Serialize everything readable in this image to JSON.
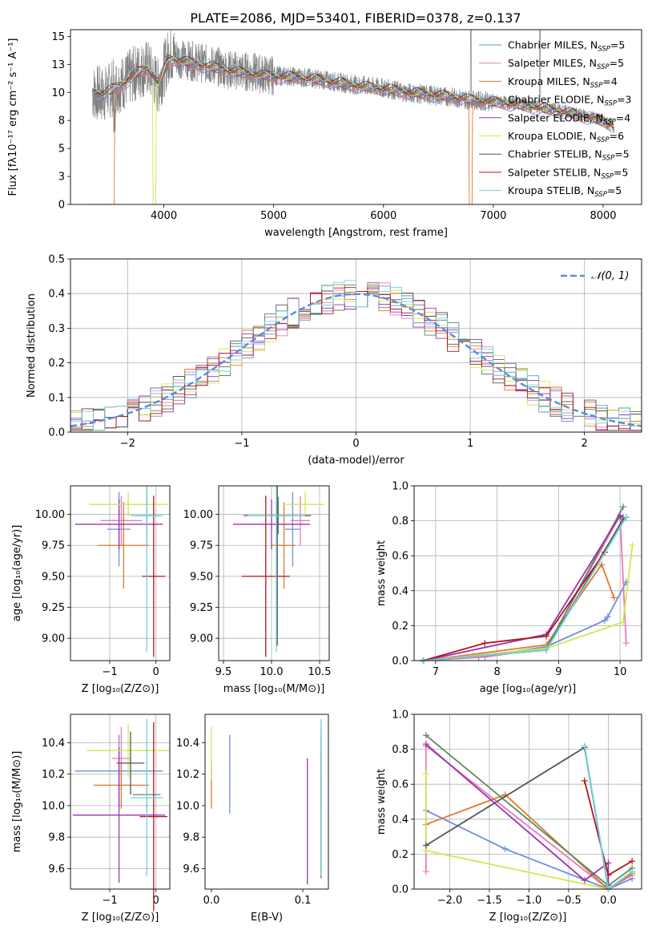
{
  "figure": {
    "title": "PLATE=2086, MJD=53401, FIBERID=0378, z=0.137"
  },
  "legend_models": [
    {
      "name": "Chabrier MILES",
      "nssp": "5",
      "color": "#6a8fdd"
    },
    {
      "name": "Salpeter MILES",
      "nssp": "5",
      "color": "#e57bb7"
    },
    {
      "name": "Kroupa MILES",
      "nssp": "4",
      "color": "#e0782c"
    },
    {
      "name": "Chabrier ELODIE",
      "nssp": "3",
      "color": "#5b8a5e"
    },
    {
      "name": "Salpeter ELODIE",
      "nssp": "4",
      "color": "#9c32b0"
    },
    {
      "name": "Kroupa ELODIE",
      "nssp": "6",
      "color": "#cdea4c"
    },
    {
      "name": "Chabrier STELIB",
      "nssp": "5",
      "color": "#555555"
    },
    {
      "name": "Salpeter STELIB",
      "nssp": "5",
      "color": "#b0141f"
    },
    {
      "name": "Kroupa STELIB",
      "nssp": "5",
      "color": "#6fd3dc"
    }
  ],
  "chart_data": [
    {
      "id": "spectrum",
      "type": "line",
      "xlabel": "wavelength [Angstrom, rest frame]",
      "ylabel": "Flux [fλ10⁻¹⁷ erg cm⁻² s⁻¹ A⁻¹]",
      "xlim": [
        3150,
        8350
      ],
      "ylim": [
        0,
        15.6
      ],
      "xticks": [
        4000,
        5000,
        6000,
        7000,
        8000
      ],
      "yticks": [
        0.0,
        2.5,
        5.0,
        7.5,
        10.0,
        12.5,
        15.0
      ],
      "data_color": "#808080",
      "data_x": [
        3350,
        3450,
        3550,
        3650,
        3750,
        3850,
        3950,
        4050,
        4150,
        4250,
        4400,
        4600,
        4800,
        5000,
        5200,
        5400,
        5600,
        5800,
        6000,
        6200,
        6400,
        6600,
        6800,
        7000,
        7200,
        7400,
        7600,
        7800,
        8000,
        8100
      ],
      "data_y": [
        10.0,
        9.8,
        10.5,
        11.0,
        11.8,
        12.2,
        10.5,
        13.5,
        13.0,
        12.8,
        12.5,
        12.0,
        11.8,
        11.5,
        11.4,
        11.2,
        10.9,
        10.6,
        10.4,
        10.0,
        9.8,
        9.6,
        9.3,
        9.2,
        9.0,
        8.7,
        8.4,
        8.0,
        7.5,
        7.0
      ],
      "model_y": [
        10.0,
        9.9,
        10.3,
        10.9,
        11.7,
        12.1,
        10.8,
        13.0,
        12.8,
        12.6,
        12.3,
        11.9,
        11.6,
        11.4,
        11.3,
        11.1,
        10.8,
        10.5,
        10.3,
        10.0,
        9.8,
        9.6,
        9.3,
        9.1,
        8.9,
        8.6,
        8.3,
        7.9,
        7.4,
        7.0
      ]
    },
    {
      "id": "residuals",
      "type": "line",
      "xlabel": "(data-model)/error",
      "ylabel": "Normed distribution",
      "xlim": [
        -2.5,
        2.5
      ],
      "ylim": [
        0,
        0.5
      ],
      "xticks": [
        -2,
        -1,
        0,
        1,
        2
      ],
      "yticks": [
        0.0,
        0.1,
        0.2,
        0.3,
        0.4,
        0.5
      ],
      "reference_label": "𝒩(0, 1)",
      "reference_color": "#5b8bd6"
    },
    {
      "id": "age_vs_Z",
      "type": "scatter",
      "xlabel": "Z [log₁₀(Z/Z⊙)]",
      "ylabel": "age  [log₁₀(age/yr)]",
      "xlim": [
        -1.85,
        0.3
      ],
      "ylim": [
        8.82,
        10.23
      ],
      "xticks": [
        -1,
        0
      ],
      "yticks": [
        9.0,
        9.25,
        9.5,
        9.75,
        10.0
      ],
      "points": [
        {
          "x": -0.8,
          "y": 9.88,
          "xerr": 0.25,
          "yerr": 0.3
        },
        {
          "x": -0.75,
          "y": 9.95,
          "xerr": 0.45,
          "yerr": 0.2
        },
        {
          "x": -0.7,
          "y": 9.75,
          "xerr": 0.55,
          "yerr": 0.35
        },
        {
          "x": -0.2,
          "y": 9.99,
          "xerr": 0.3,
          "yerr": 0.15
        },
        {
          "x": -0.8,
          "y": 9.92,
          "xerr": 0.95,
          "yerr": 0.2
        },
        {
          "x": -0.6,
          "y": 10.08,
          "xerr": 0.85,
          "yerr": 0.1
        },
        {
          "x": -0.2,
          "y": 9.99,
          "xerr": 0.25,
          "yerr": 0.25
        },
        {
          "x": -0.05,
          "y": 9.5,
          "xerr": 0.25,
          "yerr": 0.65
        },
        {
          "x": -0.2,
          "y": 9.99,
          "xerr": 0.35,
          "yerr": 1.1
        }
      ]
    },
    {
      "id": "age_vs_mass",
      "type": "scatter",
      "xlabel": "mass [log₁₀(M/M⊙)]",
      "ylabel": "",
      "xlim": [
        9.45,
        10.6
      ],
      "ylim": [
        8.82,
        10.23
      ],
      "xticks": [
        9.5,
        10.0,
        10.5
      ],
      "yticks": [
        9.0,
        9.25,
        9.5,
        9.75,
        10.0
      ],
      "points": [
        {
          "x": 10.22,
          "y": 9.88,
          "xerr": 0.08,
          "yerr": 0.3
        },
        {
          "x": 10.3,
          "y": 9.95,
          "xerr": 0.1,
          "yerr": 0.2
        },
        {
          "x": 10.13,
          "y": 9.75,
          "xerr": 0.12,
          "yerr": 0.35
        },
        {
          "x": 10.07,
          "y": 9.99,
          "xerr": 0.1,
          "yerr": 0.15
        },
        {
          "x": 10.0,
          "y": 9.92,
          "xerr": 0.4,
          "yerr": 0.2
        },
        {
          "x": 10.35,
          "y": 10.08,
          "xerr": 0.2,
          "yerr": 0.1
        },
        {
          "x": 10.06,
          "y": 9.99,
          "xerr": 0.35,
          "yerr": 1.05
        },
        {
          "x": 9.94,
          "y": 9.5,
          "xerr": 0.25,
          "yerr": 0.65
        },
        {
          "x": 10.05,
          "y": 9.99,
          "xerr": 0.3,
          "yerr": 1.1
        }
      ]
    },
    {
      "id": "weight_vs_age",
      "type": "line",
      "xlabel": "age  [log₁₀(age/yr)]",
      "ylabel": "mass weight",
      "xlim": [
        6.65,
        10.35
      ],
      "ylim": [
        0,
        1.0
      ],
      "xticks": [
        7,
        8,
        9,
        10
      ],
      "yticks": [
        0.0,
        0.2,
        0.4,
        0.6,
        0.8,
        1.0
      ],
      "series": [
        {
          "x": [
            6.8,
            7.7,
            8.8,
            9.75,
            9.8,
            10.1
          ],
          "y": [
            0.0,
            0.02,
            0.08,
            0.23,
            0.25,
            0.45
          ]
        },
        {
          "x": [
            6.8,
            7.8,
            8.8,
            10.0,
            10.1
          ],
          "y": [
            0.0,
            0.02,
            0.07,
            0.83,
            0.1
          ]
        },
        {
          "x": [
            6.8,
            8.8,
            9.7,
            9.9
          ],
          "y": [
            0.0,
            0.09,
            0.55,
            0.36
          ]
        },
        {
          "x": [
            6.8,
            8.8,
            10.05
          ],
          "y": [
            0.0,
            0.07,
            0.88
          ]
        },
        {
          "x": [
            6.8,
            8.8,
            10.0,
            10.05
          ],
          "y": [
            0.0,
            0.15,
            0.83,
            0.82
          ]
        },
        {
          "x": [
            6.8,
            8.8,
            10.05,
            10.2
          ],
          "y": [
            0.0,
            0.07,
            0.22,
            0.66
          ]
        },
        {
          "x": [
            6.8,
            8.8,
            10.05,
            10.1
          ],
          "y": [
            0.0,
            0.06,
            0.81,
            0.82
          ]
        },
        {
          "x": [
            6.8,
            7.8,
            8.8,
            9.75
          ],
          "y": [
            0.0,
            0.1,
            0.14,
            0.62
          ]
        },
        {
          "x": [
            6.8,
            8.8,
            10.1
          ],
          "y": [
            0.0,
            0.06,
            0.82
          ]
        }
      ]
    },
    {
      "id": "mass_vs_Z",
      "type": "scatter",
      "xlabel": "Z [log₁₀(Z/Z⊙)]",
      "ylabel": "mass [log₁₀(M/M⊙)]",
      "xlim": [
        -1.85,
        0.3
      ],
      "ylim": [
        9.47,
        10.58
      ],
      "xticks": [
        -1,
        0
      ],
      "yticks": [
        9.6,
        9.8,
        10.0,
        10.2,
        10.4
      ],
      "points": [
        {
          "x": -0.8,
          "y": 10.22,
          "xerr": 0.95,
          "yerr": 0.23
        },
        {
          "x": -0.75,
          "y": 10.3,
          "xerr": 0.2,
          "yerr": 0.2
        },
        {
          "x": -0.75,
          "y": 10.13,
          "xerr": 0.6,
          "yerr": 0.15
        },
        {
          "x": -0.2,
          "y": 10.07,
          "xerr": 0.3,
          "yerr": 0.1
        },
        {
          "x": -0.8,
          "y": 9.94,
          "xerr": 1.0,
          "yerr": 0.43
        },
        {
          "x": -0.6,
          "y": 10.35,
          "xerr": 0.9,
          "yerr": 0.17
        },
        {
          "x": -0.55,
          "y": 10.27,
          "xerr": 0.3,
          "yerr": 0.2
        },
        {
          "x": -0.05,
          "y": 9.93,
          "xerr": 0.3,
          "yerr": 0.6
        },
        {
          "x": -0.2,
          "y": 10.05,
          "xerr": 0.35,
          "yerr": 0.5
        }
      ]
    },
    {
      "id": "mass_vs_ebv",
      "type": "scatter",
      "xlabel": "E(B-V)",
      "ylabel": "",
      "xlim": [
        -0.007,
        0.128
      ],
      "ylim": [
        9.47,
        10.58
      ],
      "xticks": [
        0.0,
        0.1
      ],
      "yticks": [
        9.6,
        9.8,
        10.0,
        10.2,
        10.4
      ],
      "points": [
        {
          "x": 0.02,
          "y": 10.2,
          "yerr": 0.25
        },
        {
          "x": 0.12,
          "y": 10.3,
          "yerr": 0.2
        },
        {
          "x": 0.0,
          "y": 10.13,
          "yerr": 0.15
        },
        {
          "x": 0.12,
          "y": 10.07,
          "yerr": 0.1
        },
        {
          "x": 0.105,
          "y": 9.9,
          "yerr": 0.4
        },
        {
          "x": 0.0,
          "y": 10.33,
          "yerr": 0.17
        },
        {
          "x": 0.12,
          "y": 10.0,
          "yerr": 0.45
        },
        {
          "x": 0.12,
          "y": 9.94,
          "yerr": 0.4
        },
        {
          "x": 0.12,
          "y": 10.05,
          "yerr": 0.5
        }
      ]
    },
    {
      "id": "weight_vs_Z",
      "type": "line",
      "xlabel": "Z [log₁₀(Z/Z⊙)]",
      "ylabel": "mass weight",
      "xlim": [
        -2.45,
        0.42
      ],
      "ylim": [
        0,
        1.0
      ],
      "xticks": [
        -2.0,
        -1.5,
        -1.0,
        -0.5,
        0.0
      ],
      "yticks": [
        0.0,
        0.2,
        0.4,
        0.6,
        0.8,
        1.0
      ],
      "series": [
        {
          "x": [
            -2.3,
            -1.3,
            0.0,
            0.3
          ],
          "y": [
            0.45,
            0.23,
            0.0,
            0.06
          ]
        },
        {
          "x": [
            -2.3,
            -2.3,
            0.0,
            0.3
          ],
          "y": [
            0.1,
            0.82,
            0.0,
            0.08
          ]
        },
        {
          "x": [
            -2.3,
            -1.3,
            0.0,
            0.3
          ],
          "y": [
            0.37,
            0.54,
            0.0,
            0.09
          ]
        },
        {
          "x": [
            -2.3,
            0.0,
            0.3
          ],
          "y": [
            0.88,
            0.02,
            0.12
          ]
        },
        {
          "x": [
            -2.3,
            -0.3,
            0.0,
            0.0
          ],
          "y": [
            0.83,
            0.05,
            0.15,
            0.0
          ]
        },
        {
          "x": [
            -2.3,
            -2.3,
            0.0,
            0.3
          ],
          "y": [
            0.66,
            0.22,
            0.0,
            0.1
          ]
        },
        {
          "x": [
            -2.3,
            -0.3,
            0.0
          ],
          "y": [
            0.25,
            0.81,
            0.0
          ]
        },
        {
          "x": [
            -0.3,
            0.0,
            0.3
          ],
          "y": [
            0.62,
            0.08,
            0.16
          ]
        },
        {
          "x": [
            -0.3,
            0.0,
            0.3
          ],
          "y": [
            0.82,
            0.0,
            0.1
          ]
        }
      ]
    }
  ]
}
